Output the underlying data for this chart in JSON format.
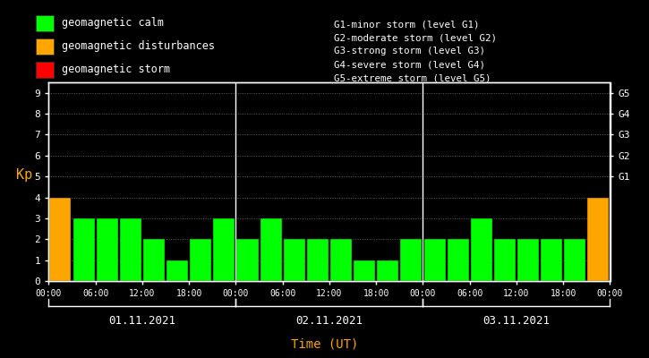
{
  "background_color": "#000000",
  "plot_bg_color": "#000000",
  "text_color": "#ffffff",
  "orange_color": "#ffa500",
  "green_color": "#00ff00",
  "red_color": "#ff0000",
  "ylabel_color": "#ffa500",
  "xlabel_color": "#ffa500",
  "days": [
    "01.11.2021",
    "02.11.2021",
    "03.11.2021"
  ],
  "kp_values": [
    4,
    3,
    3,
    3,
    2,
    1,
    2,
    3,
    2,
    3,
    2,
    2,
    2,
    1,
    1,
    2,
    2,
    2,
    3,
    2,
    2,
    2,
    2,
    4
  ],
  "bar_colors": [
    "orange",
    "green",
    "green",
    "green",
    "green",
    "green",
    "green",
    "green",
    "green",
    "green",
    "green",
    "green",
    "green",
    "green",
    "green",
    "green",
    "green",
    "green",
    "green",
    "green",
    "green",
    "green",
    "green",
    "orange"
  ],
  "ylim": [
    0,
    9.5
  ],
  "yticks": [
    0,
    1,
    2,
    3,
    4,
    5,
    6,
    7,
    8,
    9
  ],
  "right_labels": [
    [
      "G5",
      9.0
    ],
    [
      "G4",
      8.0
    ],
    [
      "G3",
      7.0
    ],
    [
      "G2",
      6.0
    ],
    [
      "G1",
      5.0
    ]
  ],
  "legend_items": [
    {
      "label": "geomagnetic calm",
      "color": "#00ff00"
    },
    {
      "label": "geomagnetic disturbances",
      "color": "#ffa500"
    },
    {
      "label": "geomagnetic storm",
      "color": "#ff0000"
    }
  ],
  "legend_right_text": [
    "G1-minor storm (level G1)",
    "G2-moderate storm (level G2)",
    "G3-strong storm (level G3)",
    "G4-severe storm (level G4)",
    "G5-extreme storm (level G5)"
  ],
  "xlabel": "Time (UT)",
  "ylabel": "Kp",
  "hours_labels": [
    "00:00",
    "06:00",
    "12:00",
    "18:00"
  ]
}
